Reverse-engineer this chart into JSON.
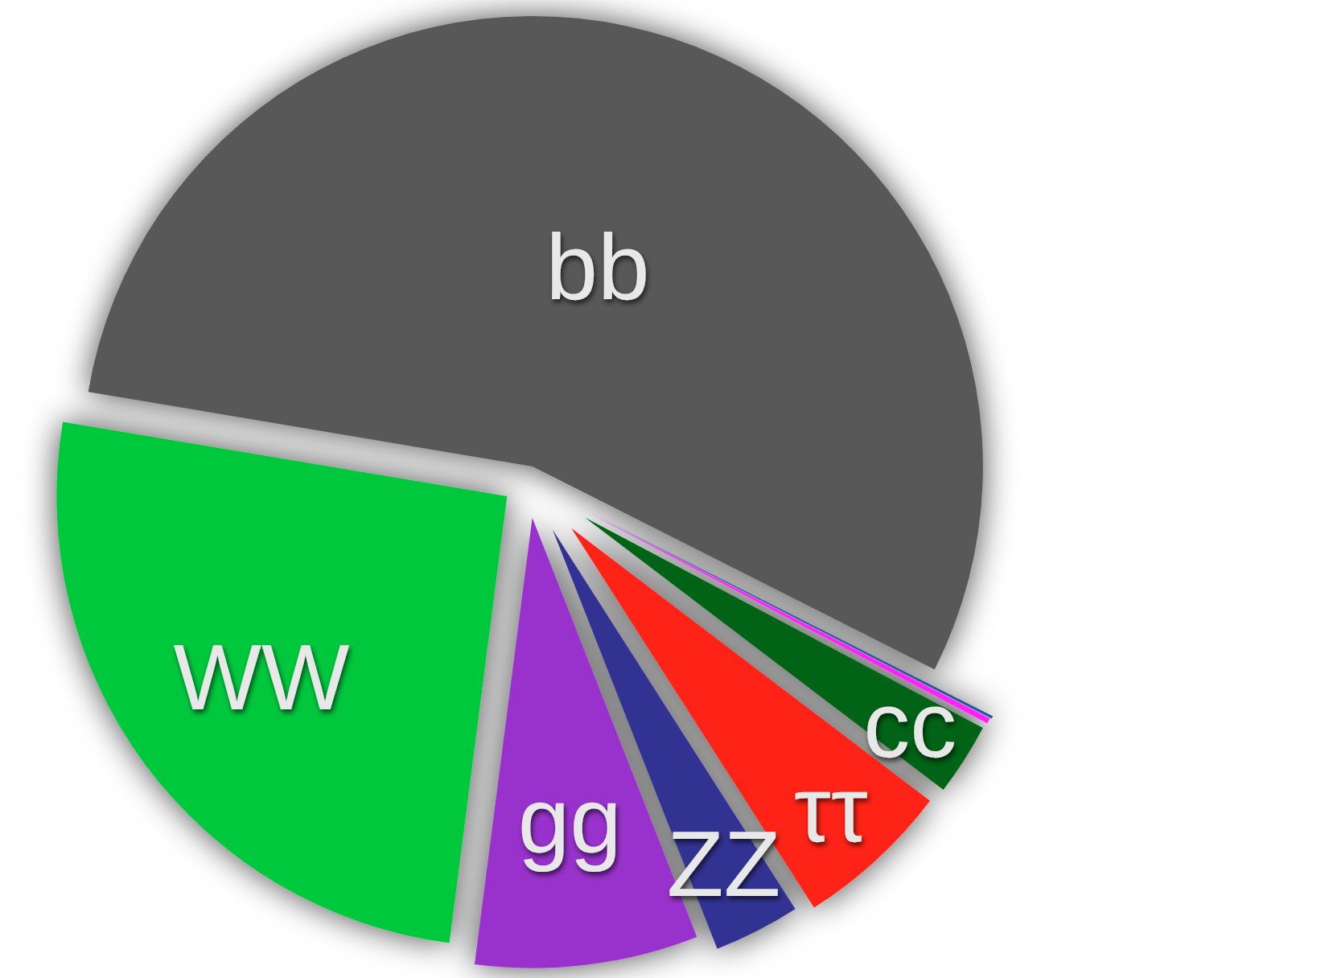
{
  "chart_data": {
    "type": "pie",
    "categories": [
      "bb",
      "WW",
      "gg",
      "ZZ",
      "ττ",
      "cc",
      null,
      null
    ],
    "values": [
      54.8,
      25.6,
      8.0,
      3.1,
      5.6,
      2.6,
      0.2,
      0.1
    ],
    "colors": [
      "#595959",
      "#00c83e",
      "#9933cc",
      "#333393",
      "#ff2019",
      "#006418",
      "#ff22ff",
      "#2b5599"
    ]
  }
}
